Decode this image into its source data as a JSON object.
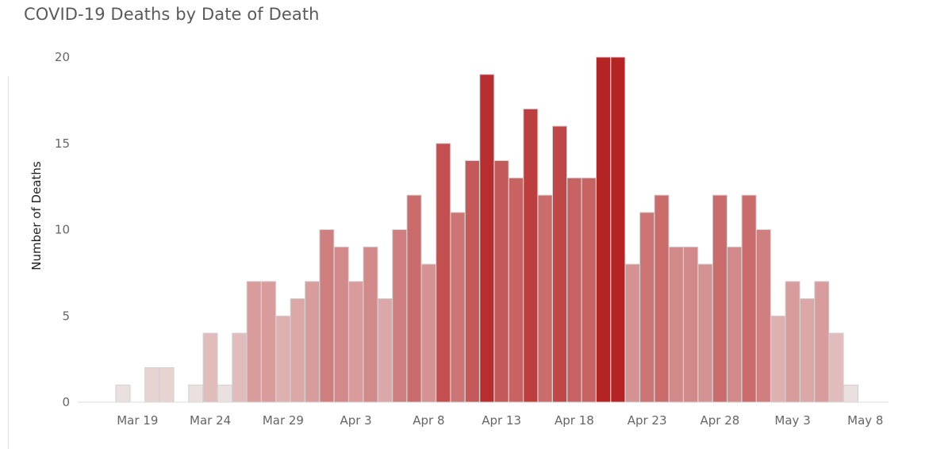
{
  "chart_data": {
    "type": "bar",
    "title": "COVID-19 Deaths by Date of Death",
    "ylabel": "Number of Deaths",
    "xlabel": "",
    "ylim": [
      0,
      20
    ],
    "yticks": [
      "0",
      "5",
      "10",
      "15",
      "20"
    ],
    "xticks": [
      "Mar 19",
      "Mar 24",
      "Mar 29",
      "Apr 3",
      "Apr 8",
      "Apr 13",
      "Apr 18",
      "Apr 23",
      "Apr 28",
      "May 3",
      "May 8"
    ],
    "categories": [
      "Mar 16",
      "Mar 17",
      "Mar 18",
      "Mar 19",
      "Mar 20",
      "Mar 21",
      "Mar 22",
      "Mar 23",
      "Mar 24",
      "Mar 25",
      "Mar 26",
      "Mar 27",
      "Mar 28",
      "Mar 29",
      "Mar 30",
      "Mar 31",
      "Apr 1",
      "Apr 2",
      "Apr 3",
      "Apr 4",
      "Apr 5",
      "Apr 6",
      "Apr 7",
      "Apr 8",
      "Apr 9",
      "Apr 10",
      "Apr 11",
      "Apr 12",
      "Apr 13",
      "Apr 14",
      "Apr 15",
      "Apr 16",
      "Apr 17",
      "Apr 18",
      "Apr 19",
      "Apr 20",
      "Apr 21",
      "Apr 22",
      "Apr 23",
      "Apr 24",
      "Apr 25",
      "Apr 26",
      "Apr 27",
      "Apr 28",
      "Apr 29",
      "Apr 30",
      "May 1",
      "May 2",
      "May 3",
      "May 4",
      "May 5",
      "May 6",
      "May 7",
      "May 8"
    ],
    "values": [
      0,
      0,
      1,
      0,
      2,
      2,
      0,
      1,
      4,
      1,
      4,
      7,
      7,
      5,
      6,
      7,
      10,
      9,
      7,
      9,
      6,
      10,
      12,
      8,
      15,
      11,
      14,
      19,
      14,
      13,
      17,
      12,
      16,
      13,
      13,
      20,
      20,
      8,
      11,
      12,
      9,
      9,
      8,
      12,
      9,
      12,
      10,
      5,
      7,
      6,
      7,
      4,
      1,
      0
    ],
    "color_scale": {
      "low": "#f0f0f0",
      "high": "#b52424"
    },
    "grid": false,
    "legend": "none"
  }
}
